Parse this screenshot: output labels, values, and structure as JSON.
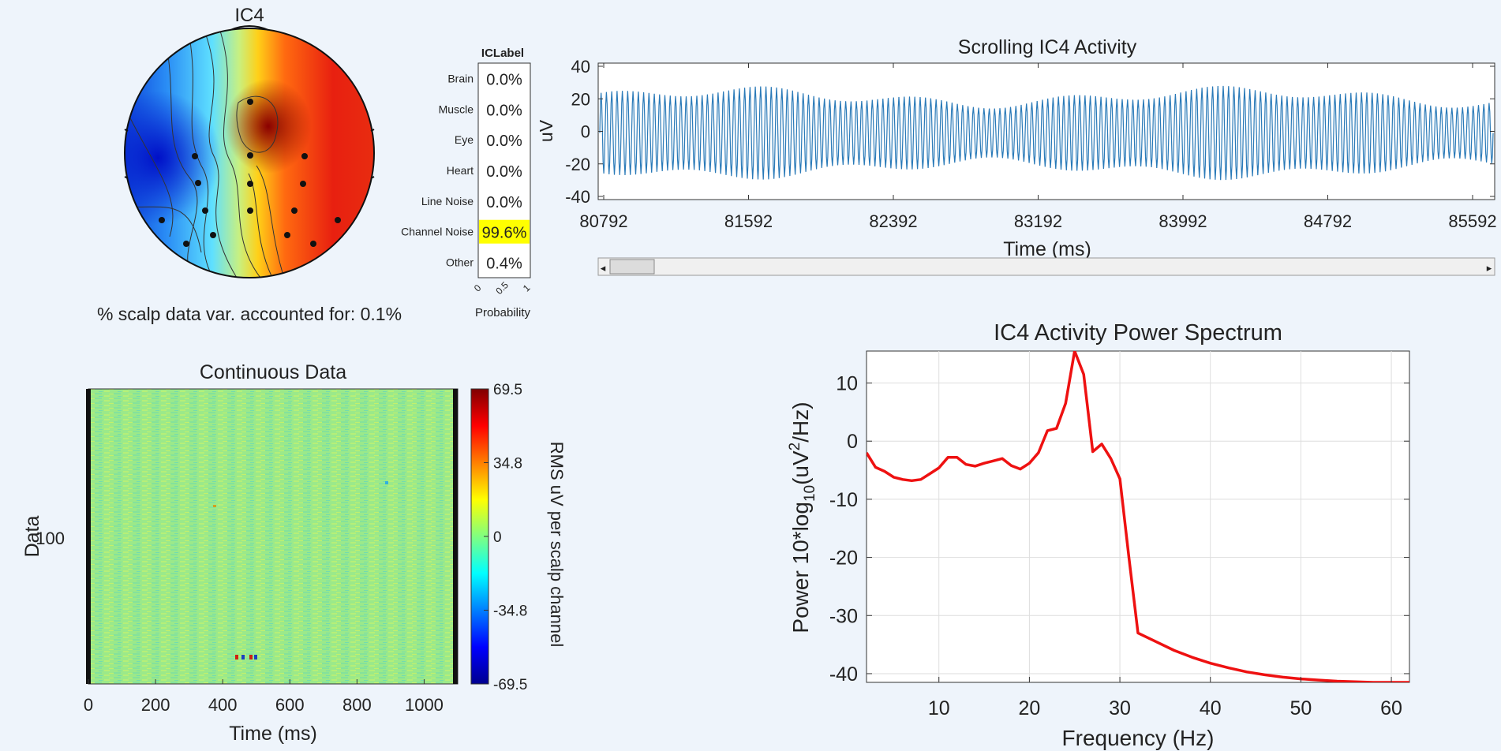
{
  "topo": {
    "title": "IC4",
    "caption": "% scalp data var. accounted for: 0.1%"
  },
  "iclabel": {
    "title": "ICLabel",
    "xlabel": "Probability",
    "ticks": [
      "0",
      "0.5",
      "1"
    ],
    "highlight_color": "#ffff00",
    "rows": [
      {
        "label": "Brain",
        "value": "0.0%",
        "prob": 0.0
      },
      {
        "label": "Muscle",
        "value": "0.0%",
        "prob": 0.0
      },
      {
        "label": "Eye",
        "value": "0.0%",
        "prob": 0.0
      },
      {
        "label": "Heart",
        "value": "0.0%",
        "prob": 0.0
      },
      {
        "label": "Line Noise",
        "value": "0.0%",
        "prob": 0.0
      },
      {
        "label": "Channel Noise",
        "value": "99.6%",
        "prob": 0.996
      },
      {
        "label": "Other",
        "value": "0.4%",
        "prob": 0.004
      }
    ]
  },
  "scroll": {
    "title": "Scrolling IC4 Activity",
    "ylabel": "uV",
    "xlabel": "Time (ms)",
    "yticks": [
      "40",
      "20",
      "0",
      "-20",
      "-40"
    ],
    "xticks": [
      "80792",
      "81592",
      "82392",
      "83192",
      "83992",
      "84792",
      "85592"
    ],
    "scrollbar_left": "◂",
    "scrollbar_right": "▸",
    "line_color": "#2a7ab8"
  },
  "continuous": {
    "title": "Continuous Data",
    "ylabel": "Data",
    "xlabel": "Time (ms)",
    "ytick": "100",
    "xticks": [
      "0",
      "200",
      "400",
      "600",
      "800",
      "1000"
    ],
    "colorbar_ticks": [
      "69.5",
      "34.8",
      "0",
      "-34.8",
      "-69.5"
    ],
    "colorbar_label": "RMS uV per scalp channel"
  },
  "chart_data": {
    "type": "line",
    "title": "IC4 Activity Power Spectrum",
    "xlabel": "Frequency (Hz)",
    "ylabel_main": "Power 10*log",
    "ylabel_sub": "10",
    "ylabel_mid": "(uV",
    "ylabel_sup": "2",
    "ylabel_end": "/Hz)",
    "xlim": [
      2,
      62
    ],
    "ylim": [
      -41.5,
      15.5
    ],
    "xticks": [
      10,
      20,
      30,
      40,
      50,
      60
    ],
    "yticks": [
      10,
      0,
      -10,
      -20,
      -30,
      -40
    ],
    "grid": true,
    "color": "#ee1111",
    "series": [
      {
        "x": [
          2,
          3,
          4,
          5,
          6,
          7,
          8,
          9,
          10,
          11,
          12,
          13,
          14,
          15,
          16,
          17,
          18,
          19,
          20,
          21,
          22,
          23,
          24,
          25,
          26,
          27,
          28,
          29,
          30,
          31,
          32,
          34,
          36,
          38,
          40,
          42,
          44,
          46,
          48,
          50,
          52,
          54,
          56,
          58,
          60,
          62
        ],
        "y": [
          -2,
          -4.5,
          -5.2,
          -6.2,
          -6.6,
          -6.8,
          -6.6,
          -5.6,
          -4.6,
          -2.8,
          -2.8,
          -4.0,
          -4.3,
          -3.8,
          -3.4,
          -3.0,
          -4.2,
          -4.8,
          -3.8,
          -2.0,
          1.8,
          2.2,
          6.5,
          15.5,
          11.5,
          -1.8,
          -0.5,
          -3.0,
          -6.5,
          -20,
          -33,
          -34.5,
          -36,
          -37.2,
          -38.2,
          -39.0,
          -39.7,
          -40.2,
          -40.6,
          -40.9,
          -41.1,
          -41.3,
          -41.4,
          -41.5,
          -41.5,
          -41.5
        ]
      }
    ]
  }
}
